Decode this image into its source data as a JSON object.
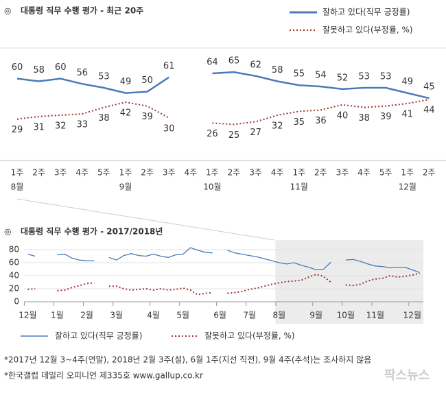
{
  "chart_data": [
    {
      "type": "line",
      "title": "대통령 직무 수행 평가 - 최근 20주",
      "categories": [
        "1주",
        "2주",
        "3주",
        "4주",
        "5주",
        "1주",
        "2주",
        "3주",
        "4주",
        "1주",
        "2주",
        "3주",
        "4주",
        "1주",
        "2주",
        "3주",
        "4주",
        "5주",
        "1주",
        "2주"
      ],
      "months": [
        "8월",
        null,
        null,
        null,
        null,
        "9월",
        null,
        null,
        null,
        "10월",
        null,
        null,
        null,
        "11월",
        null,
        null,
        null,
        null,
        "12월",
        null
      ],
      "ylim": [
        0,
        85
      ],
      "series": [
        {
          "name": "잘하고 있다(직무 긍정률)",
          "color": "#4a7ab8",
          "style": "solid",
          "values": [
            60,
            58,
            60,
            56,
            53,
            49,
            50,
            61,
            null,
            64,
            65,
            62,
            58,
            55,
            54,
            52,
            53,
            53,
            49,
            45
          ]
        },
        {
          "name": "잘못하고 있다(부정률, %)",
          "color": "#a0312e",
          "style": "dotted",
          "values": [
            29,
            31,
            32,
            33,
            38,
            42,
            39,
            30,
            null,
            26,
            25,
            27,
            32,
            35,
            36,
            40,
            38,
            39,
            41,
            44
          ]
        }
      ]
    },
    {
      "type": "line",
      "title": "대통령 직무 수행 평가 - 2017/2018년",
      "x": [
        0,
        1,
        2,
        3,
        4,
        5,
        6,
        7,
        8,
        9,
        10,
        11,
        12,
        13,
        14,
        15,
        16,
        17,
        18,
        19,
        20,
        21,
        22,
        23,
        24,
        25,
        26,
        27,
        28,
        29,
        30,
        31,
        32,
        33,
        34,
        35,
        36,
        37,
        38,
        39,
        40,
        41,
        42,
        43,
        44,
        45,
        46,
        47,
        48,
        49,
        50,
        51,
        52,
        53
      ],
      "xlim": [
        -0.5,
        53.5
      ],
      "xticks": [
        {
          "value": 0,
          "label": "12월"
        },
        {
          "value": 4,
          "label": "1월"
        },
        {
          "value": 8,
          "label": "2월"
        },
        {
          "value": 12,
          "label": "3월"
        },
        {
          "value": 17,
          "label": "4월"
        },
        {
          "value": 21,
          "label": "5월"
        },
        {
          "value": 26,
          "label": "6월"
        },
        {
          "value": 30,
          "label": "7월"
        },
        {
          "value": 34,
          "label": "8월"
        },
        {
          "value": 39,
          "label": "9월"
        },
        {
          "value": 43,
          "label": "10월"
        },
        {
          "value": 47,
          "label": "11월"
        },
        {
          "value": 52,
          "label": "12월"
        }
      ],
      "ylim": [
        0,
        80
      ],
      "yticks": [
        0,
        20,
        40,
        60,
        80
      ],
      "series": [
        {
          "name": "잘하고 있다(직무 긍정률)",
          "color": "#4a7ab8",
          "style": "solid",
          "values": [
            73,
            70,
            null,
            null,
            72,
            73,
            67,
            64,
            63,
            63,
            null,
            68,
            64,
            71,
            74,
            71,
            70,
            73,
            70,
            68,
            72,
            73,
            83,
            79,
            76,
            75,
            null,
            79,
            75,
            73,
            71,
            69,
            66,
            63,
            60,
            58,
            60,
            56,
            53,
            49,
            50,
            61,
            null,
            64,
            65,
            62,
            58,
            55,
            54,
            52,
            53,
            53,
            49,
            45
          ]
        },
        {
          "name": "잘못하고 있다(부정률, %)",
          "color": "#a0312e",
          "style": "dotted",
          "values": [
            19,
            20,
            null,
            null,
            17,
            18,
            22,
            25,
            28,
            29,
            null,
            24,
            24,
            20,
            18,
            19,
            20,
            18,
            20,
            18,
            19,
            21,
            18,
            11,
            13,
            14,
            null,
            13,
            14,
            16,
            19,
            21,
            24,
            27,
            29,
            31,
            32,
            33,
            38,
            42,
            39,
            30,
            null,
            26,
            25,
            27,
            32,
            35,
            36,
            40,
            38,
            39,
            41,
            44
          ]
        }
      ]
    }
  ],
  "notes": [
    "*2017년 12월 3~4주(연말), 2018년 2월 3주(설), 6월 1주(지선 직전), 9월 4주(추석)는 조사하지 않음",
    "*한국갤럽 데일리 오피니언 제335호 www.gallup.co.kr"
  ],
  "watermark": "팍스뉴스"
}
